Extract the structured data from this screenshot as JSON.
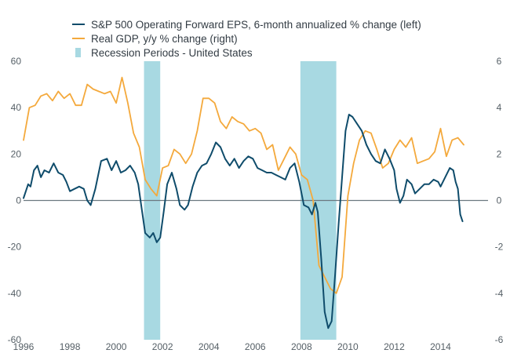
{
  "colors": {
    "eps": "#0f4c6b",
    "gdp": "#f4a93c",
    "recession": "#a8d9e2",
    "zero_line": "#6b7880",
    "axis_text": "#555f66"
  },
  "chart_data": {
    "type": "line",
    "legend": {
      "position": "top-left",
      "entries": [
        {
          "key": "eps",
          "label": "S&P 500 Operating Forward EPS, 6-month annualized % change (left)",
          "kind": "line"
        },
        {
          "key": "gdp",
          "label": "Real GDP, y/y % change (right)",
          "kind": "line"
        },
        {
          "key": "recession",
          "label": "Recession Periods - United States",
          "kind": "area"
        }
      ]
    },
    "xlim": [
      1996,
      2016.05
    ],
    "x_ticks": [
      "1996",
      "1998",
      "2000",
      "2002",
      "2004",
      "2006",
      "2008",
      "2010",
      "2012",
      "2014"
    ],
    "ylim_left": [
      -60,
      60
    ],
    "y_ticks_left": [
      "-60",
      "-40",
      "-20",
      "0",
      "20",
      "40",
      "60"
    ],
    "ylim_right": [
      -6,
      6
    ],
    "y_ticks_right": [
      "-6",
      "-4",
      "-2",
      "0",
      "2",
      "4",
      "6"
    ],
    "grid": false,
    "recessions": [
      {
        "start": 2001.2,
        "end": 2001.9
      },
      {
        "start": 2007.95,
        "end": 2009.5
      }
    ],
    "series": [
      {
        "key": "eps",
        "axis": "left",
        "points": [
          [
            1996.0,
            1
          ],
          [
            1996.2,
            7
          ],
          [
            1996.3,
            6
          ],
          [
            1996.45,
            13
          ],
          [
            1996.6,
            15
          ],
          [
            1996.75,
            10
          ],
          [
            1996.9,
            13
          ],
          [
            1997.1,
            12
          ],
          [
            1997.3,
            16
          ],
          [
            1997.5,
            12
          ],
          [
            1997.7,
            11
          ],
          [
            1997.85,
            8
          ],
          [
            1998.0,
            4
          ],
          [
            1998.2,
            5
          ],
          [
            1998.4,
            6
          ],
          [
            1998.6,
            5
          ],
          [
            1998.75,
            0
          ],
          [
            1998.9,
            -2
          ],
          [
            1999.1,
            5
          ],
          [
            1999.35,
            17
          ],
          [
            1999.6,
            18
          ],
          [
            1999.8,
            13
          ],
          [
            2000.0,
            17
          ],
          [
            2000.2,
            12
          ],
          [
            2000.4,
            13
          ],
          [
            2000.6,
            15
          ],
          [
            2000.8,
            12
          ],
          [
            2000.95,
            7
          ],
          [
            2001.05,
            0
          ],
          [
            2001.25,
            -14
          ],
          [
            2001.45,
            -16
          ],
          [
            2001.6,
            -14
          ],
          [
            2001.75,
            -18
          ],
          [
            2001.9,
            -16
          ],
          [
            2002.05,
            -5
          ],
          [
            2002.2,
            7
          ],
          [
            2002.4,
            12
          ],
          [
            2002.6,
            5
          ],
          [
            2002.75,
            -2
          ],
          [
            2002.95,
            -4
          ],
          [
            2003.1,
            -2
          ],
          [
            2003.3,
            6
          ],
          [
            2003.5,
            12
          ],
          [
            2003.7,
            15
          ],
          [
            2003.9,
            16
          ],
          [
            2004.1,
            20
          ],
          [
            2004.3,
            25
          ],
          [
            2004.5,
            23
          ],
          [
            2004.7,
            18
          ],
          [
            2004.9,
            15
          ],
          [
            2005.1,
            18
          ],
          [
            2005.3,
            14
          ],
          [
            2005.5,
            17
          ],
          [
            2005.7,
            19
          ],
          [
            2005.9,
            18
          ],
          [
            2006.1,
            14
          ],
          [
            2006.3,
            13
          ],
          [
            2006.5,
            12
          ],
          [
            2006.7,
            12
          ],
          [
            2006.9,
            11
          ],
          [
            2007.1,
            10
          ],
          [
            2007.3,
            9
          ],
          [
            2007.5,
            14
          ],
          [
            2007.7,
            16
          ],
          [
            2007.9,
            8
          ],
          [
            2008.1,
            -2
          ],
          [
            2008.3,
            -3
          ],
          [
            2008.45,
            -6
          ],
          [
            2008.6,
            -1
          ],
          [
            2008.7,
            -5
          ],
          [
            2008.85,
            -25
          ],
          [
            2009.0,
            -48
          ],
          [
            2009.15,
            -55
          ],
          [
            2009.3,
            -52
          ],
          [
            2009.45,
            -32
          ],
          [
            2009.6,
            -10
          ],
          [
            2009.75,
            10
          ],
          [
            2009.9,
            30
          ],
          [
            2010.05,
            37
          ],
          [
            2010.2,
            36
          ],
          [
            2010.4,
            33
          ],
          [
            2010.6,
            30
          ],
          [
            2010.8,
            24
          ],
          [
            2011.0,
            20
          ],
          [
            2011.2,
            17
          ],
          [
            2011.4,
            16
          ],
          [
            2011.6,
            22
          ],
          [
            2011.8,
            18
          ],
          [
            2012.0,
            13
          ],
          [
            2012.1,
            5
          ],
          [
            2012.25,
            -1
          ],
          [
            2012.4,
            2
          ],
          [
            2012.55,
            9
          ],
          [
            2012.75,
            7
          ],
          [
            2012.9,
            3
          ],
          [
            2013.1,
            5
          ],
          [
            2013.3,
            7
          ],
          [
            2013.5,
            7
          ],
          [
            2013.7,
            9
          ],
          [
            2013.9,
            8
          ],
          [
            2014.0,
            6
          ],
          [
            2014.2,
            10
          ],
          [
            2014.4,
            14
          ],
          [
            2014.55,
            13
          ],
          [
            2014.65,
            8
          ],
          [
            2014.75,
            5
          ],
          [
            2014.85,
            -6
          ],
          [
            2014.95,
            -9
          ]
        ]
      },
      {
        "key": "gdp",
        "axis": "right",
        "points": [
          [
            1996.0,
            2.6
          ],
          [
            1996.25,
            4.0
          ],
          [
            1996.5,
            4.1
          ],
          [
            1996.75,
            4.5
          ],
          [
            1997.0,
            4.6
          ],
          [
            1997.25,
            4.3
          ],
          [
            1997.5,
            4.7
          ],
          [
            1997.75,
            4.4
          ],
          [
            1998.0,
            4.6
          ],
          [
            1998.25,
            4.1
          ],
          [
            1998.5,
            4.1
          ],
          [
            1998.75,
            5.0
          ],
          [
            1999.0,
            4.8
          ],
          [
            1999.25,
            4.7
          ],
          [
            1999.5,
            4.6
          ],
          [
            1999.75,
            4.7
          ],
          [
            2000.0,
            4.2
          ],
          [
            2000.25,
            5.3
          ],
          [
            2000.5,
            4.2
          ],
          [
            2000.75,
            2.9
          ],
          [
            2001.0,
            2.3
          ],
          [
            2001.25,
            0.9
          ],
          [
            2001.5,
            0.5
          ],
          [
            2001.75,
            0.2
          ],
          [
            2002.0,
            1.4
          ],
          [
            2002.25,
            1.5
          ],
          [
            2002.5,
            2.2
          ],
          [
            2002.75,
            2.0
          ],
          [
            2003.0,
            1.6
          ],
          [
            2003.25,
            2.0
          ],
          [
            2003.5,
            3.0
          ],
          [
            2003.75,
            4.4
          ],
          [
            2004.0,
            4.4
          ],
          [
            2004.25,
            4.2
          ],
          [
            2004.5,
            3.4
          ],
          [
            2004.75,
            3.1
          ],
          [
            2005.0,
            3.6
          ],
          [
            2005.25,
            3.4
          ],
          [
            2005.5,
            3.3
          ],
          [
            2005.75,
            3.0
          ],
          [
            2006.0,
            3.1
          ],
          [
            2006.25,
            2.9
          ],
          [
            2006.5,
            2.2
          ],
          [
            2006.75,
            2.4
          ],
          [
            2007.0,
            1.3
          ],
          [
            2007.25,
            1.8
          ],
          [
            2007.5,
            2.3
          ],
          [
            2007.75,
            2.0
          ],
          [
            2008.0,
            1.1
          ],
          [
            2008.25,
            0.9
          ],
          [
            2008.5,
            0.0
          ],
          [
            2008.75,
            -2.8
          ],
          [
            2009.0,
            -3.3
          ],
          [
            2009.25,
            -3.8
          ],
          [
            2009.5,
            -4.0
          ],
          [
            2009.75,
            -3.3
          ],
          [
            2010.0,
            0.2
          ],
          [
            2010.25,
            1.6
          ],
          [
            2010.5,
            2.6
          ],
          [
            2010.75,
            3.0
          ],
          [
            2011.0,
            2.9
          ],
          [
            2011.25,
            2.2
          ],
          [
            2011.5,
            1.4
          ],
          [
            2011.75,
            1.6
          ],
          [
            2012.0,
            2.2
          ],
          [
            2012.25,
            2.6
          ],
          [
            2012.5,
            2.3
          ],
          [
            2012.75,
            2.7
          ],
          [
            2013.0,
            1.6
          ],
          [
            2013.25,
            1.7
          ],
          [
            2013.5,
            1.8
          ],
          [
            2013.75,
            2.1
          ],
          [
            2014.0,
            3.1
          ],
          [
            2014.25,
            1.9
          ],
          [
            2014.5,
            2.6
          ],
          [
            2014.75,
            2.7
          ],
          [
            2015.0,
            2.4
          ]
        ]
      }
    ]
  }
}
